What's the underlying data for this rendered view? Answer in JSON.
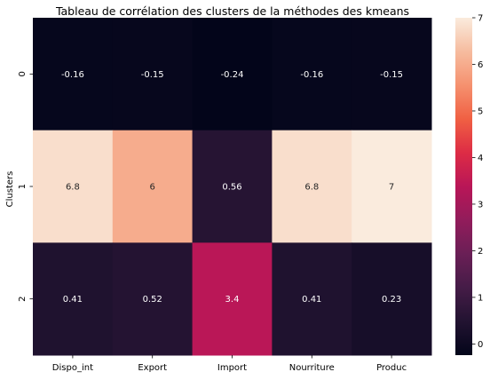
{
  "chart_data": {
    "type": "heatmap",
    "title": "Tableau de corrélation des clusters de la méthodes des kmeans",
    "ylabel": "Clusters",
    "xlabel": "",
    "columns": [
      "Dispo_int",
      "Export",
      "Import",
      "Nourriture",
      "Produc"
    ],
    "rows": [
      "0",
      "1",
      "2"
    ],
    "values": [
      [
        -0.16,
        -0.15,
        -0.24,
        -0.16,
        -0.15
      ],
      [
        6.8,
        6,
        0.56,
        6.8,
        7
      ],
      [
        0.41,
        0.52,
        3.4,
        0.41,
        0.23
      ]
    ],
    "value_labels": [
      [
        "-0.16",
        "-0.15",
        "-0.24",
        "-0.16",
        "-0.15"
      ],
      [
        "6.8",
        "6",
        "0.56",
        "6.8",
        "7"
      ],
      [
        "0.41",
        "0.52",
        "3.4",
        "0.41",
        "0.23"
      ]
    ],
    "colormap": "rocket",
    "colorbar": {
      "range": [
        -0.24,
        7
      ],
      "ticks": [
        "0",
        "1",
        "2",
        "3",
        "4",
        "5",
        "6",
        "7"
      ]
    }
  }
}
